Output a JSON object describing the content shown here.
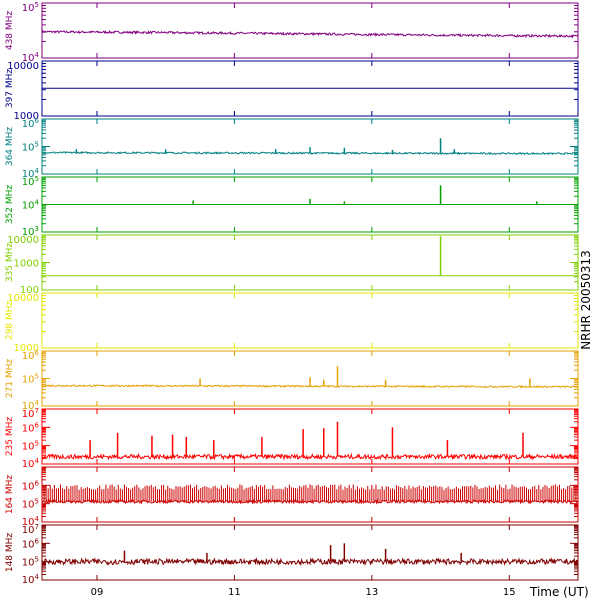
{
  "side_label": "NRHR 20050313",
  "chart_data": {
    "type": "line",
    "xlabel": "Time (UT)",
    "xlim": [
      8.2,
      16.0
    ],
    "x_ticks": [
      {
        "value": 9,
        "label": "09"
      },
      {
        "value": 11,
        "label": "11"
      },
      {
        "value": 13,
        "label": "13"
      },
      {
        "value": 15,
        "label": "15"
      }
    ],
    "panels": [
      {
        "id": "438",
        "label": "438 MHz",
        "color": "#800080",
        "scale": "log",
        "ylim": [
          10000,
          100000
        ],
        "y_ticks": [
          {
            "value": 100000,
            "label": "10^5"
          },
          {
            "value": 10000,
            "label": "10^4"
          }
        ],
        "baseline_points": [
          [
            8.2,
            30000
          ],
          [
            10.0,
            29000
          ],
          [
            12.0,
            27500
          ],
          [
            14.0,
            26000
          ],
          [
            16.0,
            25000
          ]
        ],
        "noise_dex": 0.02,
        "spikes": []
      },
      {
        "id": "397",
        "label": "397 MHz",
        "color": "#00008b",
        "scale": "log",
        "ylim": [
          1000,
          10000
        ],
        "y_ticks": [
          {
            "value": 10000,
            "label": "10000"
          },
          {
            "value": 1000,
            "label": "1000"
          }
        ],
        "baseline_points": [
          [
            8.2,
            3200
          ],
          [
            16.0,
            3200
          ]
        ],
        "noise_dex": 0.0,
        "spikes": []
      },
      {
        "id": "364",
        "label": "364 MHz",
        "color": "#008080",
        "scale": "log",
        "ylim": [
          10000,
          1000000
        ],
        "y_ticks": [
          {
            "value": 1000000,
            "label": "10^6"
          },
          {
            "value": 100000,
            "label": "10^5"
          },
          {
            "value": 10000,
            "label": "10^4"
          }
        ],
        "baseline_points": [
          [
            8.2,
            60000
          ],
          [
            16.0,
            55000
          ]
        ],
        "noise_dex": 0.03,
        "spikes": [
          [
            8.7,
            80000
          ],
          [
            10.0,
            78000
          ],
          [
            11.6,
            80000
          ],
          [
            12.1,
            95000
          ],
          [
            12.6,
            90000
          ],
          [
            13.3,
            75000
          ],
          [
            14.0,
            200000
          ],
          [
            14.2,
            80000
          ]
        ]
      },
      {
        "id": "352",
        "label": "352 MHz",
        "color": "#00a000",
        "scale": "log",
        "ylim": [
          1000,
          100000
        ],
        "y_ticks": [
          {
            "value": 100000,
            "label": "10^5"
          },
          {
            "value": 10000,
            "label": "10^4"
          },
          {
            "value": 1000,
            "label": "10^3"
          }
        ],
        "baseline_points": [
          [
            8.2,
            10000
          ],
          [
            16.0,
            10000
          ]
        ],
        "noise_dex": 0.0,
        "spikes": [
          [
            10.4,
            14000
          ],
          [
            12.1,
            16000
          ],
          [
            12.6,
            13000
          ],
          [
            14.0,
            50000
          ],
          [
            15.4,
            13000
          ]
        ]
      },
      {
        "id": "335",
        "label": "335 MHz",
        "color": "#7fd000",
        "scale": "log",
        "ylim": [
          100,
          10000
        ],
        "y_ticks": [
          {
            "value": 10000,
            "label": "10000"
          },
          {
            "value": 1000,
            "label": "1000"
          },
          {
            "value": 100,
            "label": "100"
          }
        ],
        "baseline_points": [
          [
            8.2,
            330
          ],
          [
            16.0,
            330
          ]
        ],
        "noise_dex": 0.0,
        "spikes": [
          [
            14.0,
            9000
          ]
        ]
      },
      {
        "id": "298",
        "label": "298 MHz",
        "color": "#e6e600",
        "scale": "log",
        "ylim": [
          1000,
          10000
        ],
        "y_ticks": [
          {
            "value": 10000,
            "label": "10000"
          },
          {
            "value": 1000,
            "label": "1000"
          }
        ],
        "baseline_points": [
          [
            8.2,
            10000
          ],
          [
            16.0,
            10000
          ]
        ],
        "noise_dex": 0.0,
        "spikes": []
      },
      {
        "id": "271",
        "label": "271 MHz",
        "color": "#e6a000",
        "scale": "log",
        "ylim": [
          10000,
          1000000
        ],
        "y_ticks": [
          {
            "value": 1000000,
            "label": "10^6"
          },
          {
            "value": 100000,
            "label": "10^5"
          },
          {
            "value": 10000,
            "label": "10^4"
          }
        ],
        "baseline_points": [
          [
            8.2,
            55000
          ],
          [
            16.0,
            50000
          ]
        ],
        "noise_dex": 0.03,
        "spikes": [
          [
            10.5,
            100000
          ],
          [
            12.1,
            110000
          ],
          [
            12.3,
            90000
          ],
          [
            12.5,
            280000
          ],
          [
            13.2,
            90000
          ],
          [
            15.3,
            100000
          ]
        ]
      },
      {
        "id": "235",
        "label": "235 MHz",
        "color": "#ff0000",
        "scale": "log",
        "ylim": [
          10000,
          10000000
        ],
        "y_ticks": [
          {
            "value": 10000000,
            "label": "10^7"
          },
          {
            "value": 1000000,
            "label": "10^6"
          },
          {
            "value": 100000,
            "label": "10^5"
          },
          {
            "value": 10000,
            "label": "10^4"
          }
        ],
        "baseline_points": [
          [
            8.2,
            25000
          ],
          [
            16.0,
            25000
          ]
        ],
        "noise_dex": 0.12,
        "spikes": [
          [
            8.9,
            200000
          ],
          [
            9.3,
            500000
          ],
          [
            9.8,
            350000
          ],
          [
            10.1,
            400000
          ],
          [
            10.3,
            300000
          ],
          [
            10.7,
            200000
          ],
          [
            11.4,
            300000
          ],
          [
            12.0,
            800000
          ],
          [
            12.3,
            900000
          ],
          [
            12.5,
            2000000
          ],
          [
            13.3,
            1000000
          ],
          [
            14.1,
            200000
          ],
          [
            15.2,
            500000
          ]
        ]
      },
      {
        "id": "164",
        "label": "164 MHz",
        "color": "#cc0000",
        "scale": "log",
        "ylim": [
          10000,
          10000000
        ],
        "y_ticks": [
          {
            "value": 1000000,
            "label": "10^6"
          },
          {
            "value": 100000,
            "label": "10^5"
          },
          {
            "value": 10000,
            "label": "10^4"
          }
        ],
        "baseline_points": [
          [
            8.2,
            130000
          ],
          [
            16.0,
            130000
          ]
        ],
        "noise_dex": 0.08,
        "spikes": []
      },
      {
        "id": "148",
        "label": "148 MHz",
        "color": "#800000",
        "scale": "log",
        "ylim": [
          10000,
          10000000
        ],
        "y_ticks": [
          {
            "value": 10000000,
            "label": "10^7"
          },
          {
            "value": 1000000,
            "label": "10^6"
          },
          {
            "value": 100000,
            "label": "10^5"
          },
          {
            "value": 10000,
            "label": "10^4"
          }
        ],
        "baseline_points": [
          [
            8.2,
            100000
          ],
          [
            16.0,
            100000
          ]
        ],
        "noise_dex": 0.15,
        "spikes": [
          [
            9.4,
            400000
          ],
          [
            10.6,
            300000
          ],
          [
            12.4,
            800000
          ],
          [
            12.6,
            1000000
          ],
          [
            13.2,
            500000
          ],
          [
            14.3,
            300000
          ]
        ]
      }
    ]
  }
}
